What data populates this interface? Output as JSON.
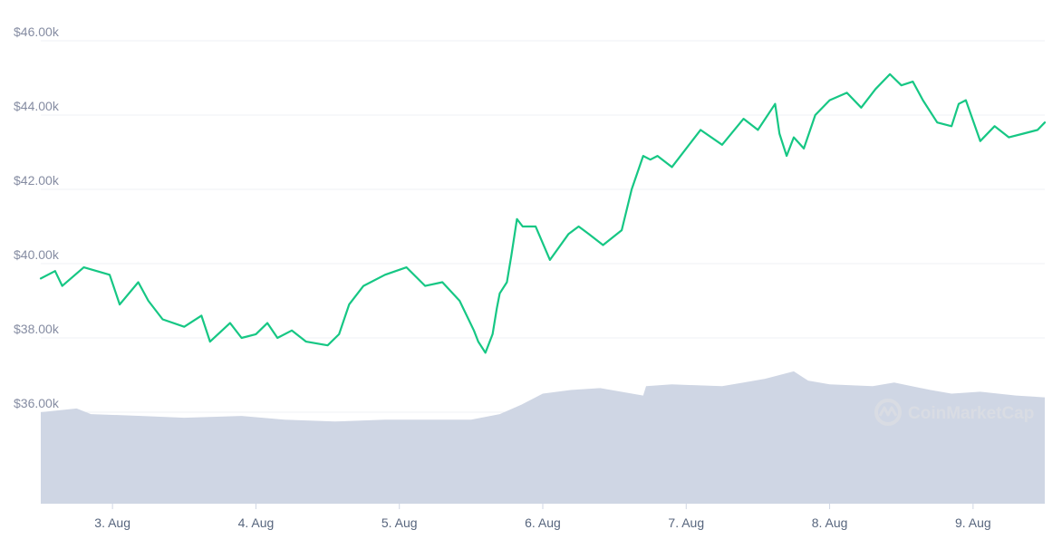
{
  "watermark": {
    "text": "CoinMarketCap",
    "icon": "coinmarketcap-logo-icon"
  },
  "colors": {
    "price_line": "#16c784",
    "volume_fill": "#cfd6e4",
    "grid": "#eff2f5",
    "axis_text": "#858ca2"
  },
  "chart_data": {
    "type": "line",
    "title": "",
    "xlabel": "",
    "ylabel": "",
    "grid": true,
    "legend": "none",
    "ylim": [
      34000,
      46200
    ],
    "y_ticks": [
      36000,
      38000,
      40000,
      42000,
      44000,
      46000
    ],
    "y_tick_labels": [
      "$36.00k",
      "$38.00k",
      "$40.00k",
      "$42.00k",
      "$44.00k",
      "$46.00k"
    ],
    "x_ticks": [
      3,
      4,
      5,
      6,
      7,
      8,
      9
    ],
    "x_tick_labels": [
      "3. Aug",
      "4. Aug",
      "5. Aug",
      "6. Aug",
      "7. Aug",
      "8. Aug",
      "9. Aug"
    ],
    "xlim": [
      2.5,
      9.5
    ],
    "series": [
      {
        "type": "line",
        "x": [
          2.5,
          2.6,
          2.65,
          2.8,
          2.98,
          3.05,
          3.18,
          3.25,
          3.35,
          3.5,
          3.62,
          3.68,
          3.82,
          3.9,
          4.0,
          4.08,
          4.15,
          4.25,
          4.35,
          4.5,
          4.58,
          4.65,
          4.75,
          4.9,
          5.05,
          5.18,
          5.3,
          5.42,
          5.52,
          5.55,
          5.6,
          5.65,
          5.68,
          5.7,
          5.75,
          5.78,
          5.82,
          5.86,
          5.95,
          6.05,
          6.18,
          6.25,
          6.32,
          6.42,
          6.55,
          6.62,
          6.7,
          6.75,
          6.8,
          6.9,
          7.0,
          7.1,
          7.25,
          7.4,
          7.5,
          7.62,
          7.65,
          7.7,
          7.75,
          7.82,
          7.9,
          8.0,
          8.12,
          8.22,
          8.32,
          8.42,
          8.5,
          8.58,
          8.65,
          8.75,
          8.85,
          8.9,
          8.95,
          9.05,
          9.15,
          9.25,
          9.35,
          9.45,
          9.5
        ],
        "values": [
          39600,
          39800,
          39400,
          39900,
          39700,
          38900,
          39500,
          39000,
          38500,
          38300,
          38600,
          37900,
          38400,
          38000,
          38100,
          38400,
          38000,
          38200,
          37900,
          37800,
          38100,
          38900,
          39400,
          39700,
          39900,
          39400,
          39500,
          39000,
          38200,
          37900,
          37600,
          38100,
          38800,
          39200,
          39500,
          40200,
          41200,
          41000,
          41000,
          40100,
          40800,
          41000,
          40800,
          40500,
          40900,
          42000,
          42900,
          42800,
          42900,
          42600,
          43100,
          43600,
          43200,
          43900,
          43600,
          44300,
          43500,
          42900,
          43400,
          43100,
          44000,
          44400,
          44600,
          44200,
          44700,
          45100,
          44800,
          44900,
          44400,
          43800,
          43700,
          44300,
          44400,
          43300,
          43700,
          43400,
          43500,
          43600,
          43800
        ]
      },
      {
        "type": "area",
        "name": "",
        "x": [
          2.5,
          2.75,
          2.85,
          3.2,
          3.5,
          3.9,
          4.2,
          4.55,
          4.9,
          5.25,
          5.5,
          5.7,
          5.85,
          6.0,
          6.2,
          6.4,
          6.7,
          6.72,
          6.9,
          7.25,
          7.4,
          7.55,
          7.75,
          7.85,
          8.0,
          8.3,
          8.45,
          8.7,
          8.85,
          9.05,
          9.3,
          9.5
        ],
        "values": [
          36000,
          36100,
          35950,
          35900,
          35850,
          35900,
          35800,
          35750,
          35800,
          35800,
          35800,
          35950,
          36200,
          36500,
          36600,
          36650,
          36450,
          36700,
          36750,
          36700,
          36800,
          36900,
          37100,
          36850,
          36750,
          36700,
          36800,
          36600,
          36500,
          36550,
          36450,
          36400
        ]
      }
    ]
  }
}
